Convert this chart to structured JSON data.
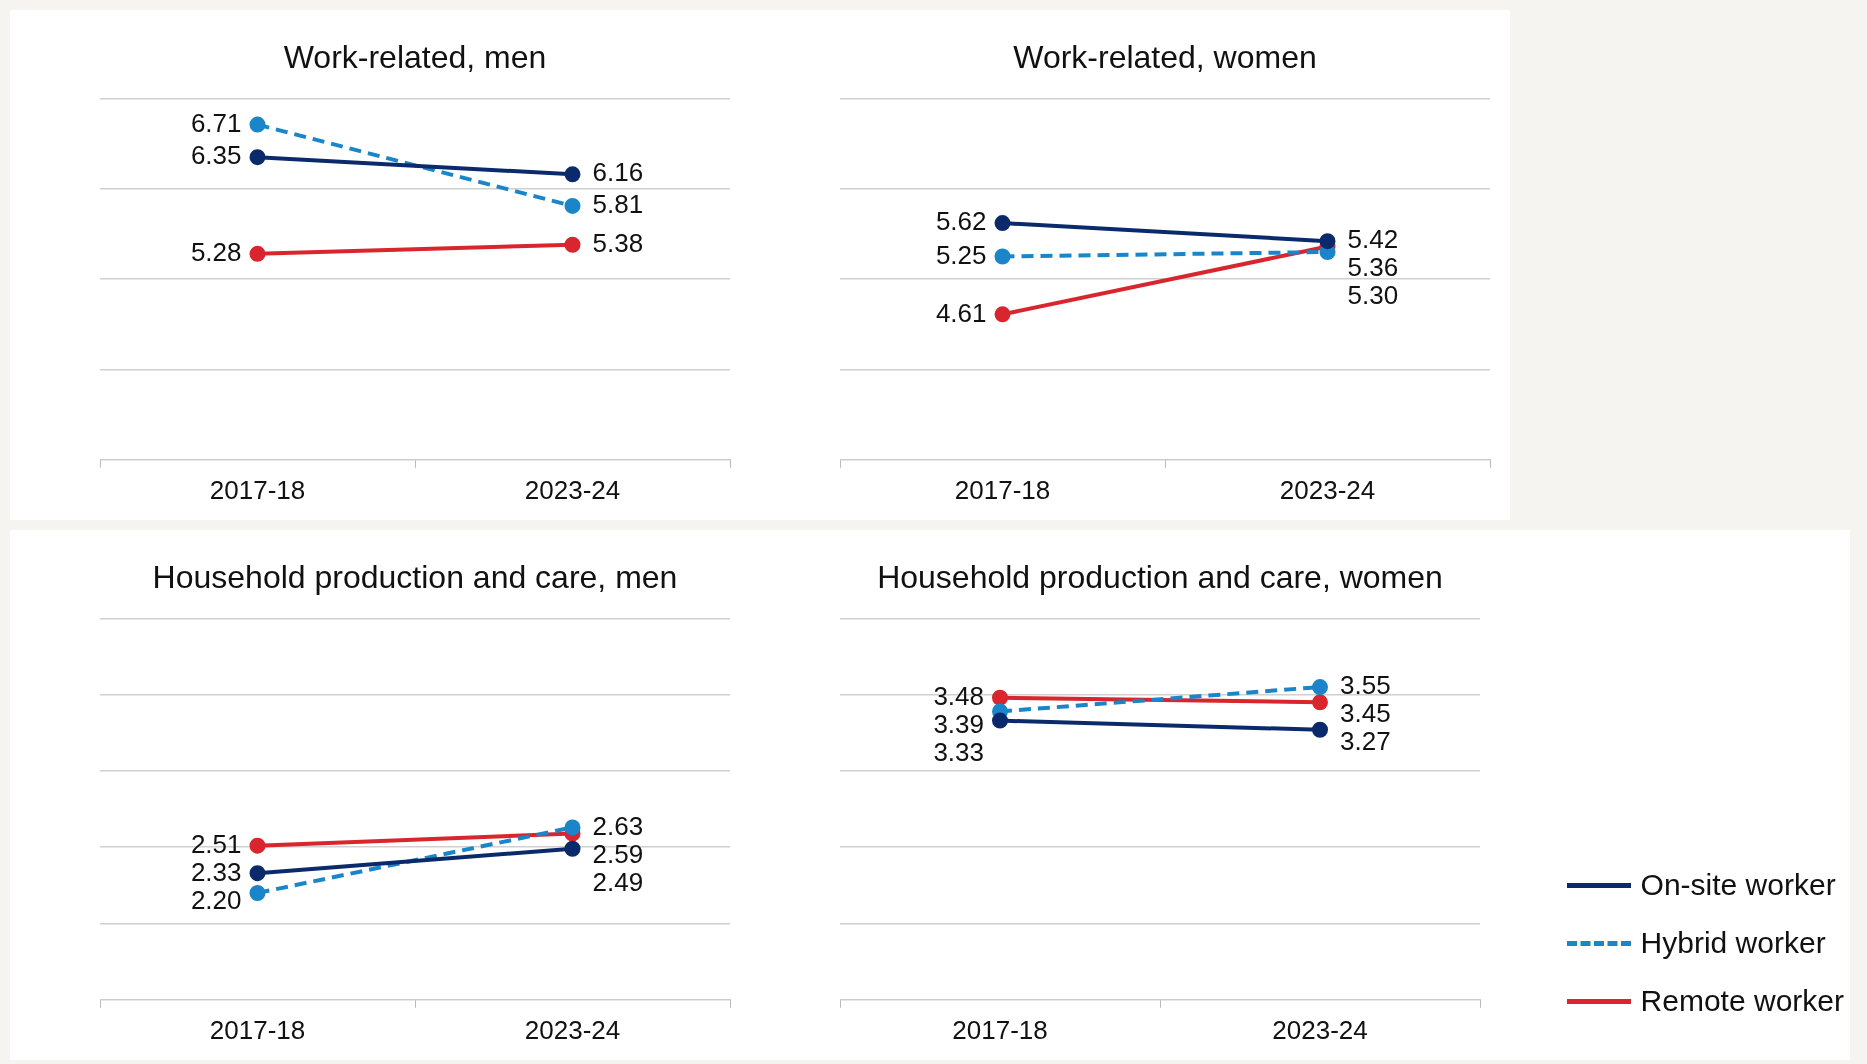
{
  "chart_data": [
    {
      "type": "line",
      "title": "Work-related, men",
      "categories": [
        "2017-18",
        "2023-24"
      ],
      "ylim": [
        3,
        7
      ],
      "yticks": [
        {
          "value": 3,
          "label": null
        },
        {
          "value": 4,
          "label": null
        },
        {
          "value": 5,
          "label": null
        },
        {
          "value": 6,
          "label": null
        },
        {
          "value": 7,
          "label": null
        }
      ],
      "tick_labels": "x",
      "grid": "y",
      "marker": "circle",
      "series": [
        {
          "color": "#0b2a6b",
          "line_style": "solid",
          "values": [
            6.35,
            6.16
          ],
          "value_labels": [
            "6.35",
            "6.16"
          ]
        },
        {
          "color": "#1a85c8",
          "line_style": "dashed",
          "values": [
            6.71,
            5.81
          ],
          "value_labels": [
            "6.71",
            "5.81"
          ]
        },
        {
          "color": "#d9262e",
          "line_style": "solid",
          "values": [
            5.28,
            5.38
          ],
          "value_labels": [
            "5.28",
            "5.38"
          ]
        }
      ]
    },
    {
      "type": "line",
      "title": "Work-related, women",
      "categories": [
        "2017-18",
        "2023-24"
      ],
      "ylim": [
        3,
        7
      ],
      "yticks": [
        {
          "value": 3,
          "label": null
        },
        {
          "value": 4,
          "label": null
        },
        {
          "value": 5,
          "label": null
        },
        {
          "value": 6,
          "label": null
        },
        {
          "value": 7,
          "label": null
        }
      ],
      "tick_labels": "x",
      "grid": "y",
      "marker": "circle",
      "series": [
        {
          "color": "#0b2a6b",
          "line_style": "solid",
          "values": [
            5.62,
            5.42
          ],
          "value_labels": [
            "5.62",
            "5.42"
          ]
        },
        {
          "color": "#1a85c8",
          "line_style": "dashed",
          "values": [
            5.25,
            5.3
          ],
          "value_labels": [
            "5.25",
            "5.30"
          ]
        },
        {
          "color": "#d9262e",
          "line_style": "solid",
          "values": [
            4.61,
            5.36
          ],
          "value_labels": [
            "4.61",
            "5.36"
          ]
        }
      ]
    },
    {
      "type": "line",
      "title": "Household production and care, men",
      "categories": [
        "2017-18",
        "2023-24"
      ],
      "ylim": [
        1.5,
        4
      ],
      "yticks": [
        {
          "value": 1.5,
          "label": null
        },
        {
          "value": 2,
          "label": null
        },
        {
          "value": 2.5,
          "label": null
        },
        {
          "value": 3,
          "label": null
        },
        {
          "value": 3.5,
          "label": null
        },
        {
          "value": 4,
          "label": null
        }
      ],
      "tick_labels": "x",
      "grid": "y",
      "marker": "circle",
      "series": [
        {
          "color": "#0b2a6b",
          "line_style": "solid",
          "values": [
            2.33,
            2.49
          ],
          "value_labels": [
            "2.33",
            "2.49"
          ]
        },
        {
          "color": "#1a85c8",
          "line_style": "dashed",
          "values": [
            2.2,
            2.63
          ],
          "value_labels": [
            "2.20",
            "2.63"
          ]
        },
        {
          "color": "#d9262e",
          "line_style": "solid",
          "values": [
            2.51,
            2.59
          ],
          "value_labels": [
            "2.51",
            "2.59"
          ]
        }
      ]
    },
    {
      "type": "line",
      "title": "Household production and care, women",
      "categories": [
        "2017-18",
        "2023-24"
      ],
      "ylim": [
        1.5,
        4
      ],
      "yticks": [
        {
          "value": 1.5,
          "label": null
        },
        {
          "value": 2,
          "label": null
        },
        {
          "value": 2.5,
          "label": null
        },
        {
          "value": 3,
          "label": null
        },
        {
          "value": 3.5,
          "label": null
        },
        {
          "value": 4,
          "label": null
        }
      ],
      "tick_labels": "x",
      "grid": "y",
      "marker": "circle",
      "legend": "right",
      "series": [
        {
          "name": "On-site worker",
          "color": "#0b2a6b",
          "line_style": "solid",
          "values": [
            3.33,
            3.27
          ],
          "value_labels": [
            "3.33",
            "3.27"
          ]
        },
        {
          "name": "Hybrid worker",
          "color": "#1a85c8",
          "line_style": "dashed",
          "values": [
            3.39,
            3.55
          ],
          "value_labels": [
            "3.39",
            "3.55"
          ]
        },
        {
          "name": "Remote worker",
          "color": "#d9262e",
          "line_style": "solid",
          "values": [
            3.48,
            3.45
          ],
          "value_labels": [
            "3.48",
            "3.45"
          ]
        }
      ]
    }
  ]
}
